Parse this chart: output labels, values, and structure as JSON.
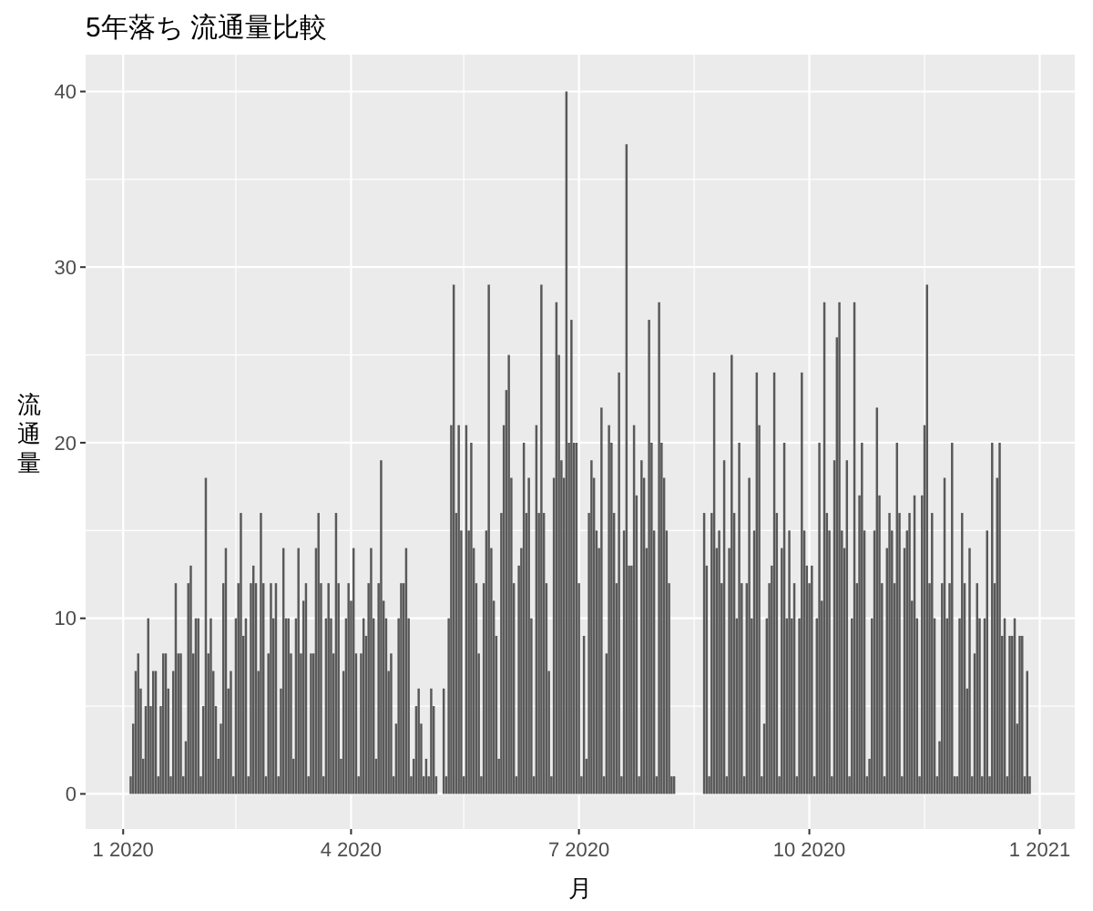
{
  "chart_data": {
    "type": "bar",
    "title": "5年落ち 流通量比較",
    "xlabel": "月",
    "ylabel": "流通量",
    "color": "#595959",
    "grid": true,
    "xlim": [
      "2019-12-17",
      "2021-01-15"
    ],
    "xticks": [
      {
        "value": "2020-01-01",
        "label": "1 2020"
      },
      {
        "value": "2020-02-15",
        "label": null
      },
      {
        "value": "2020-04-01",
        "label": "4 2020"
      },
      {
        "value": "2020-05-16",
        "label": null
      },
      {
        "value": "2020-07-01",
        "label": "7 2020"
      },
      {
        "value": "2020-08-16",
        "label": null
      },
      {
        "value": "2020-10-01",
        "label": "10 2020"
      },
      {
        "value": "2020-11-16",
        "label": null
      },
      {
        "value": "2021-01-01",
        "label": "1 2021"
      }
    ],
    "ylim": [
      -2,
      42.1
    ],
    "yticks": [
      0,
      {
        "value": 5,
        "label": null
      },
      10,
      {
        "value": 15,
        "label": null
      },
      20,
      {
        "value": 25,
        "label": null
      },
      30,
      {
        "value": 35,
        "label": null
      },
      40
    ],
    "x": [
      "2020-01-04",
      "2020-01-05",
      "2020-01-06",
      "2020-01-07",
      "2020-01-08",
      "2020-01-09",
      "2020-01-10",
      "2020-01-11",
      "2020-01-12",
      "2020-01-13",
      "2020-01-14",
      "2020-01-15",
      "2020-01-16",
      "2020-01-17",
      "2020-01-18",
      "2020-01-19",
      "2020-01-20",
      "2020-01-21",
      "2020-01-22",
      "2020-01-23",
      "2020-01-24",
      "2020-01-25",
      "2020-01-26",
      "2020-01-27",
      "2020-01-28",
      "2020-01-29",
      "2020-01-30",
      "2020-01-31",
      "2020-02-01",
      "2020-02-02",
      "2020-02-03",
      "2020-02-04",
      "2020-02-05",
      "2020-02-06",
      "2020-02-07",
      "2020-02-08",
      "2020-02-09",
      "2020-02-10",
      "2020-02-11",
      "2020-02-12",
      "2020-02-13",
      "2020-02-14",
      "2020-02-15",
      "2020-02-16",
      "2020-02-17",
      "2020-02-18",
      "2020-02-19",
      "2020-02-20",
      "2020-02-21",
      "2020-02-22",
      "2020-02-23",
      "2020-02-24",
      "2020-02-25",
      "2020-02-26",
      "2020-02-27",
      "2020-02-28",
      "2020-02-29",
      "2020-03-01",
      "2020-03-02",
      "2020-03-03",
      "2020-03-04",
      "2020-03-05",
      "2020-03-06",
      "2020-03-07",
      "2020-03-08",
      "2020-03-09",
      "2020-03-10",
      "2020-03-11",
      "2020-03-12",
      "2020-03-13",
      "2020-03-14",
      "2020-03-15",
      "2020-03-16",
      "2020-03-17",
      "2020-03-18",
      "2020-03-19",
      "2020-03-20",
      "2020-03-21",
      "2020-03-22",
      "2020-03-23",
      "2020-03-24",
      "2020-03-25",
      "2020-03-26",
      "2020-03-27",
      "2020-03-28",
      "2020-03-29",
      "2020-03-30",
      "2020-03-31",
      "2020-04-01",
      "2020-04-02",
      "2020-04-03",
      "2020-04-04",
      "2020-04-05",
      "2020-04-06",
      "2020-04-07",
      "2020-04-08",
      "2020-04-09",
      "2020-04-10",
      "2020-04-11",
      "2020-04-12",
      "2020-04-13",
      "2020-04-14",
      "2020-04-15",
      "2020-04-16",
      "2020-04-17",
      "2020-04-18",
      "2020-04-19",
      "2020-04-20",
      "2020-04-21",
      "2020-04-22",
      "2020-04-23",
      "2020-04-24",
      "2020-04-25",
      "2020-04-26",
      "2020-04-27",
      "2020-04-28",
      "2020-04-29",
      "2020-04-30",
      "2020-05-01",
      "2020-05-02",
      "2020-05-03",
      "2020-05-04",
      "2020-05-05",
      "2020-05-06",
      "2020-05-07",
      "2020-05-08",
      "2020-05-09",
      "2020-05-10",
      "2020-05-11",
      "2020-05-12",
      "2020-05-13",
      "2020-05-14",
      "2020-05-15",
      "2020-05-16",
      "2020-05-17",
      "2020-05-18",
      "2020-05-19",
      "2020-05-20",
      "2020-05-21",
      "2020-05-22",
      "2020-05-23",
      "2020-05-24",
      "2020-05-25",
      "2020-05-26",
      "2020-05-27",
      "2020-05-28",
      "2020-05-29",
      "2020-05-30",
      "2020-05-31",
      "2020-06-01",
      "2020-06-02",
      "2020-06-03",
      "2020-06-04",
      "2020-06-05",
      "2020-06-06",
      "2020-06-07",
      "2020-06-08",
      "2020-06-09",
      "2020-06-10",
      "2020-06-11",
      "2020-06-12",
      "2020-06-13",
      "2020-06-14",
      "2020-06-15",
      "2020-06-16",
      "2020-06-17",
      "2020-06-18",
      "2020-06-19",
      "2020-06-20",
      "2020-06-21",
      "2020-06-22",
      "2020-06-23",
      "2020-06-24",
      "2020-06-25",
      "2020-06-26",
      "2020-06-27",
      "2020-06-28",
      "2020-06-29",
      "2020-06-30",
      "2020-07-01",
      "2020-07-02",
      "2020-07-03",
      "2020-07-04",
      "2020-07-05",
      "2020-07-06",
      "2020-07-07",
      "2020-07-08",
      "2020-07-09",
      "2020-07-10",
      "2020-07-11",
      "2020-07-12",
      "2020-07-13",
      "2020-07-14",
      "2020-07-15",
      "2020-07-16",
      "2020-07-17",
      "2020-07-18",
      "2020-07-19",
      "2020-07-20",
      "2020-07-21",
      "2020-07-22",
      "2020-07-23",
      "2020-07-24",
      "2020-07-25",
      "2020-07-26",
      "2020-07-27",
      "2020-07-28",
      "2020-07-29",
      "2020-07-30",
      "2020-07-31",
      "2020-08-01",
      "2020-08-02",
      "2020-08-03",
      "2020-08-04",
      "2020-08-05",
      "2020-08-06",
      "2020-08-07",
      "2020-08-08",
      "2020-08-09",
      "2020-08-10",
      "2020-08-11",
      "2020-08-12",
      "2020-08-13",
      "2020-08-14",
      "2020-08-15",
      "2020-08-16",
      "2020-08-17",
      "2020-08-18",
      "2020-08-19",
      "2020-08-20",
      "2020-08-21",
      "2020-08-22",
      "2020-08-23",
      "2020-08-24",
      "2020-08-25",
      "2020-08-26",
      "2020-08-27",
      "2020-08-28",
      "2020-08-29",
      "2020-08-30",
      "2020-08-31",
      "2020-09-01",
      "2020-09-02",
      "2020-09-03",
      "2020-09-04",
      "2020-09-05",
      "2020-09-06",
      "2020-09-07",
      "2020-09-08",
      "2020-09-09",
      "2020-09-10",
      "2020-09-11",
      "2020-09-12",
      "2020-09-13",
      "2020-09-14",
      "2020-09-15",
      "2020-09-16",
      "2020-09-17",
      "2020-09-18",
      "2020-09-19",
      "2020-09-20",
      "2020-09-21",
      "2020-09-22",
      "2020-09-23",
      "2020-09-24",
      "2020-09-25",
      "2020-09-26",
      "2020-09-27",
      "2020-09-28",
      "2020-09-29",
      "2020-09-30",
      "2020-10-01",
      "2020-10-02",
      "2020-10-03",
      "2020-10-04",
      "2020-10-05",
      "2020-10-06",
      "2020-10-07",
      "2020-10-08",
      "2020-10-09",
      "2020-10-10",
      "2020-10-11",
      "2020-10-12",
      "2020-10-13",
      "2020-10-14",
      "2020-10-15",
      "2020-10-16",
      "2020-10-17",
      "2020-10-18",
      "2020-10-19",
      "2020-10-20",
      "2020-10-21",
      "2020-10-22",
      "2020-10-23",
      "2020-10-24",
      "2020-10-25",
      "2020-10-26",
      "2020-10-27",
      "2020-10-28",
      "2020-10-29",
      "2020-10-30",
      "2020-10-31",
      "2020-11-01",
      "2020-11-02",
      "2020-11-03",
      "2020-11-04",
      "2020-11-05",
      "2020-11-06",
      "2020-11-07",
      "2020-11-08",
      "2020-11-09",
      "2020-11-10",
      "2020-11-11",
      "2020-11-12",
      "2020-11-13",
      "2020-11-14",
      "2020-11-15",
      "2020-11-16",
      "2020-11-17",
      "2020-11-18",
      "2020-11-19",
      "2020-11-20",
      "2020-11-21",
      "2020-11-22",
      "2020-11-23",
      "2020-11-24",
      "2020-11-25",
      "2020-11-26",
      "2020-11-27",
      "2020-11-28",
      "2020-11-29",
      "2020-11-30",
      "2020-12-01",
      "2020-12-02",
      "2020-12-03",
      "2020-12-04",
      "2020-12-05",
      "2020-12-06",
      "2020-12-07",
      "2020-12-08",
      "2020-12-09",
      "2020-12-10",
      "2020-12-11",
      "2020-12-12",
      "2020-12-13",
      "2020-12-14",
      "2020-12-15",
      "2020-12-16",
      "2020-12-17",
      "2020-12-18",
      "2020-12-19",
      "2020-12-20",
      "2020-12-21",
      "2020-12-22",
      "2020-12-23",
      "2020-12-24",
      "2020-12-25",
      "2020-12-26",
      "2020-12-27",
      "2020-12-28"
    ],
    "values": [
      1,
      4,
      7,
      8,
      6,
      2,
      5,
      10,
      5,
      7,
      7,
      1,
      5,
      8,
      8,
      6,
      1,
      7,
      12,
      8,
      8,
      1,
      3,
      12,
      13,
      8,
      10,
      10,
      1,
      5,
      18,
      8,
      10,
      7,
      5,
      2,
      4,
      12,
      14,
      6,
      7,
      1,
      10,
      12,
      16,
      9,
      10,
      1,
      12,
      13,
      12,
      7,
      16,
      12,
      1,
      8,
      12,
      10,
      12,
      1,
      6,
      14,
      10,
      10,
      8,
      2,
      10,
      14,
      8,
      11,
      12,
      1,
      8,
      8,
      14,
      16,
      12,
      1,
      10,
      12,
      10,
      8,
      16,
      12,
      2,
      7,
      10,
      12,
      11,
      14,
      8,
      1,
      8,
      10,
      9,
      12,
      14,
      10,
      2,
      12,
      19,
      11,
      10,
      7,
      8,
      1,
      4,
      10,
      12,
      12,
      14,
      10,
      1,
      2,
      5,
      6,
      4,
      1,
      2,
      1,
      6,
      5,
      1,
      null,
      null,
      6,
      1,
      10,
      21,
      29,
      16,
      21,
      15,
      1,
      21,
      15,
      20,
      14,
      12,
      8,
      1,
      12,
      15,
      29,
      14,
      11,
      9,
      2,
      16,
      21,
      23,
      25,
      18,
      12,
      1,
      13,
      14,
      20,
      16,
      18,
      10,
      1,
      21,
      16,
      29,
      16,
      12,
      7,
      1,
      18,
      28,
      25,
      19,
      18,
      40,
      20,
      27,
      20,
      20,
      12,
      1,
      9,
      2,
      16,
      19,
      18,
      15,
      14,
      22,
      1,
      8,
      21,
      20,
      16,
      12,
      24,
      1,
      15,
      37,
      13,
      13,
      21,
      17,
      1,
      19,
      18,
      14,
      27,
      20,
      15,
      1,
      28,
      20,
      18,
      15,
      12,
      1,
      1,
      null,
      null,
      null,
      null,
      null,
      null,
      null,
      null,
      null,
      null,
      null,
      16,
      13,
      1,
      16,
      24,
      14,
      15,
      12,
      19,
      1,
      14,
      25,
      16,
      10,
      20,
      12,
      1,
      12,
      18,
      10,
      15,
      24,
      21,
      1,
      4,
      10,
      12,
      13,
      24,
      16,
      1,
      14,
      20,
      10,
      15,
      10,
      12,
      1,
      10,
      24,
      15,
      13,
      12,
      13,
      1,
      10,
      20,
      11,
      28,
      16,
      15,
      1,
      19,
      26,
      28,
      15,
      14,
      19,
      1,
      10,
      28,
      12,
      17,
      20,
      15,
      1,
      2,
      10,
      15,
      22,
      17,
      12,
      1,
      14,
      16,
      15,
      12,
      20,
      16,
      1,
      14,
      15,
      16,
      11,
      17,
      10,
      1,
      17,
      21,
      29,
      12,
      16,
      10,
      1,
      3,
      12,
      18,
      10,
      12,
      20,
      1,
      1,
      10,
      16,
      12,
      6,
      14,
      1,
      8,
      12,
      10,
      1,
      10,
      15,
      1,
      20,
      12,
      18,
      20,
      9,
      10,
      1,
      9,
      9,
      10,
      4,
      9,
      9,
      1,
      7,
      1
    ]
  }
}
